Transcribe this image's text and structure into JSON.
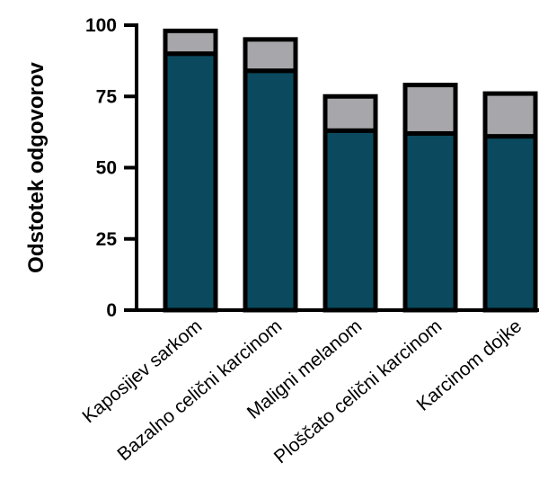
{
  "chart_data": {
    "type": "bar",
    "stacked": true,
    "title": "",
    "xlabel": "",
    "ylabel": "Odstotek odgovorov",
    "ylim": [
      0,
      100
    ],
    "yticks": [
      "0",
      "25",
      "50",
      "75",
      "100"
    ],
    "grid": false,
    "categories": [
      "Kaposijev sarkom",
      "Bazalno celični karcinom",
      "Maligni melanom",
      "Ploščato celični karcinom",
      "Karcinom dojke"
    ],
    "series": [
      {
        "values": [
          90,
          84,
          63,
          62,
          61
        ],
        "color": "#0b4a5e"
      },
      {
        "values": [
          8,
          11,
          12,
          17,
          15
        ],
        "color": "#a7a6aa"
      }
    ]
  }
}
